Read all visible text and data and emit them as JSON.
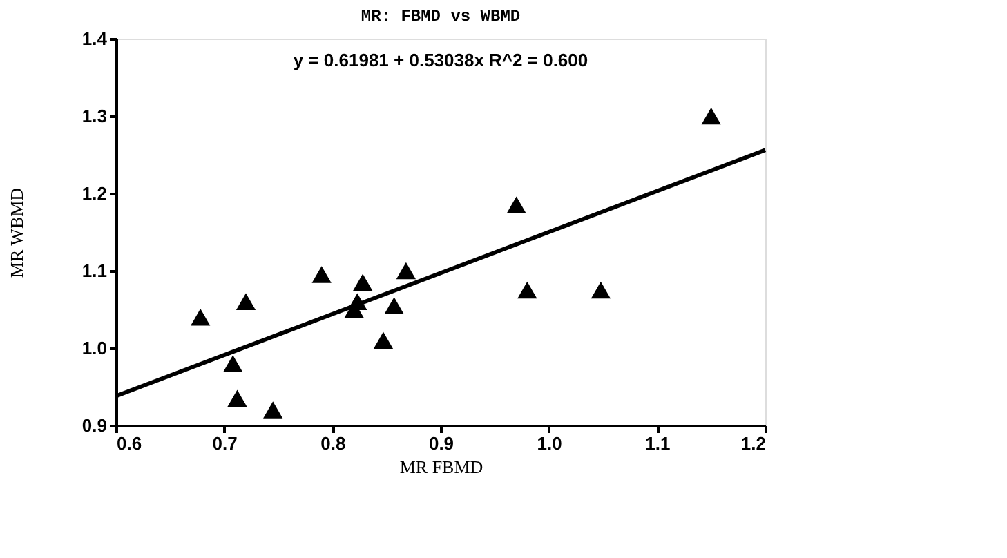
{
  "chart_data": {
    "type": "scatter",
    "title": "MR:    FBMD vs WBMD",
    "xlabel": "MR FBMD",
    "ylabel": "MR WBMD",
    "annotations": [
      "y = 0.61981 + 0.53038x    R^2 = 0.600"
    ],
    "grid": false,
    "xlim": [
      0.6,
      1.2
    ],
    "ylim": [
      0.9,
      1.4
    ],
    "xticks": [
      {
        "value": 0.6,
        "label": "0.6"
      },
      {
        "value": 0.7,
        "label": "0.7"
      },
      {
        "value": 0.8,
        "label": "0.8"
      },
      {
        "value": 0.9,
        "label": "0.9"
      },
      {
        "value": 1.0,
        "label": "1.0"
      },
      {
        "value": 1.1,
        "label": "1.1"
      },
      {
        "value": 1.2,
        "label": "1.2"
      }
    ],
    "yticks": [
      {
        "value": 0.9,
        "label": "0.9"
      },
      {
        "value": 1.0,
        "label": "1.0"
      },
      {
        "value": 1.1,
        "label": "1.1"
      },
      {
        "value": 1.2,
        "label": "1.2"
      },
      {
        "value": 1.3,
        "label": "1.3"
      },
      {
        "value": 1.4,
        "label": "1.4"
      }
    ],
    "series": [
      {
        "marker": "triangle",
        "color": "#000000",
        "x": [
          0.678,
          0.708,
          0.712,
          0.72,
          0.745,
          0.79,
          0.82,
          0.823,
          0.828,
          0.847,
          0.857,
          0.868,
          0.97,
          0.98,
          1.048,
          1.15
        ],
        "values": [
          1.04,
          0.98,
          0.935,
          1.06,
          0.92,
          1.095,
          1.05,
          1.06,
          1.085,
          1.01,
          1.055,
          1.1,
          1.185,
          1.075,
          1.075,
          1.3
        ]
      },
      {
        "type": "line",
        "color": "#000000",
        "line_style": "solid",
        "x": [
          0.6,
          1.2
        ],
        "values": [
          0.938,
          1.256
        ]
      }
    ]
  }
}
